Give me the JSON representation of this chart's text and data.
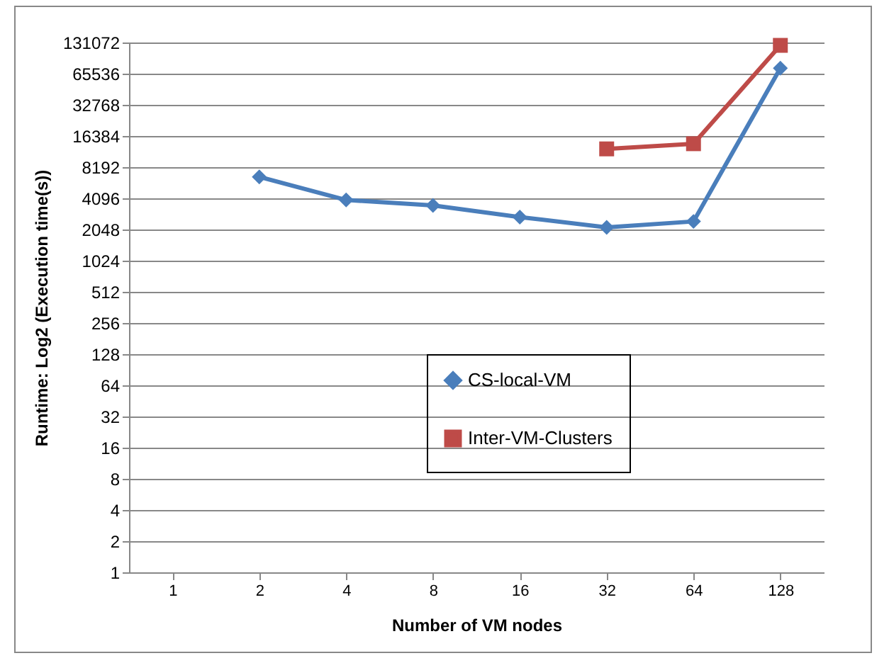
{
  "chart_data": {
    "type": "line",
    "xlabel": "Number of VM nodes",
    "ylabel": "Runtime: Log2 (Execution time(s))",
    "categories": [
      "1",
      "2",
      "4",
      "8",
      "16",
      "32",
      "64",
      "128"
    ],
    "series": [
      {
        "name": "CS-local-VM",
        "color": "#4a7ebb",
        "marker": "diamond",
        "values": [
          null,
          6600,
          3950,
          3500,
          2700,
          2150,
          2450,
          74000
        ]
      },
      {
        "name": "Inter-VM-Clusters",
        "color": "#be4b48",
        "marker": "square",
        "values": [
          null,
          null,
          null,
          null,
          null,
          12300,
          13800,
          123000
        ]
      }
    ],
    "log": "y",
    "ylim": [
      1,
      131072
    ],
    "yticks": [
      1,
      2,
      4,
      8,
      16,
      32,
      64,
      128,
      256,
      512,
      1024,
      2048,
      4096,
      8192,
      16384,
      32768,
      65536,
      131072
    ],
    "grid": "y",
    "legend": "center"
  }
}
